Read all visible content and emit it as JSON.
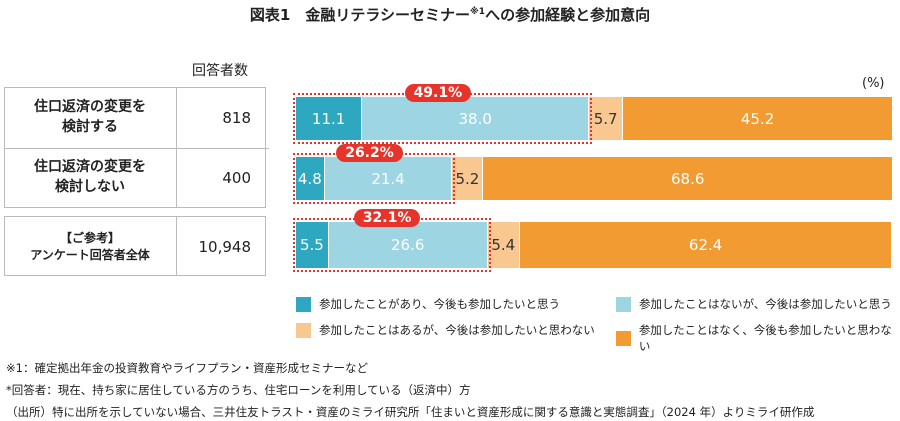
{
  "title": {
    "main": "図表1　金融リテラシーセミナー",
    "sup": "※1",
    "rest": "への参加経験と参加意向"
  },
  "count_header": "回答者数",
  "unit": "(%)",
  "colors": {
    "c1": "#2ea8c0",
    "c2": "#9dd6e2",
    "c3": "#f8c890",
    "c4": "#f29b32",
    "highlight": "#e8332a"
  },
  "chart_data": {
    "type": "bar",
    "stacked": true,
    "orientation": "horizontal",
    "xlim": [
      0,
      100
    ],
    "categories": [
      "住口返済の変更を\n検討する",
      "住口返済の変更を\n検討しない",
      "【ご参考】\nアンケート回答者全体"
    ],
    "counts": [
      "818",
      "400",
      "10,948"
    ],
    "series": [
      {
        "name": "参加したことがあり、今後も参加したいと思う",
        "values": [
          11.1,
          4.8,
          5.5
        ]
      },
      {
        "name": "参加したことはないが、今後は参加したいと思う",
        "values": [
          38.0,
          21.4,
          26.6
        ]
      },
      {
        "name": "参加したことはあるが、今後は参加したいと思わない",
        "values": [
          5.7,
          5.2,
          5.4
        ]
      },
      {
        "name": "参加したことはなく、今後も参加したいと思わない",
        "values": [
          45.2,
          68.6,
          62.4
        ]
      }
    ],
    "highlight_labels": [
      "49.1%",
      "26.2%",
      "32.1%"
    ],
    "legend": "bottom"
  },
  "notes": [
    "※1：確定拠出年金の投資教育やライフプラン・資産形成セミナーなど",
    "*回答者：現在、持ち家に居住している方のうち、住宅ローンを利用している（返済中）方",
    "（出所）特に出所を示していない場合、三井住友トラスト・資産のミライ研究所「住まいと資産形成に関する意識と実態調査」（2024 年）よりミライ研作成"
  ]
}
